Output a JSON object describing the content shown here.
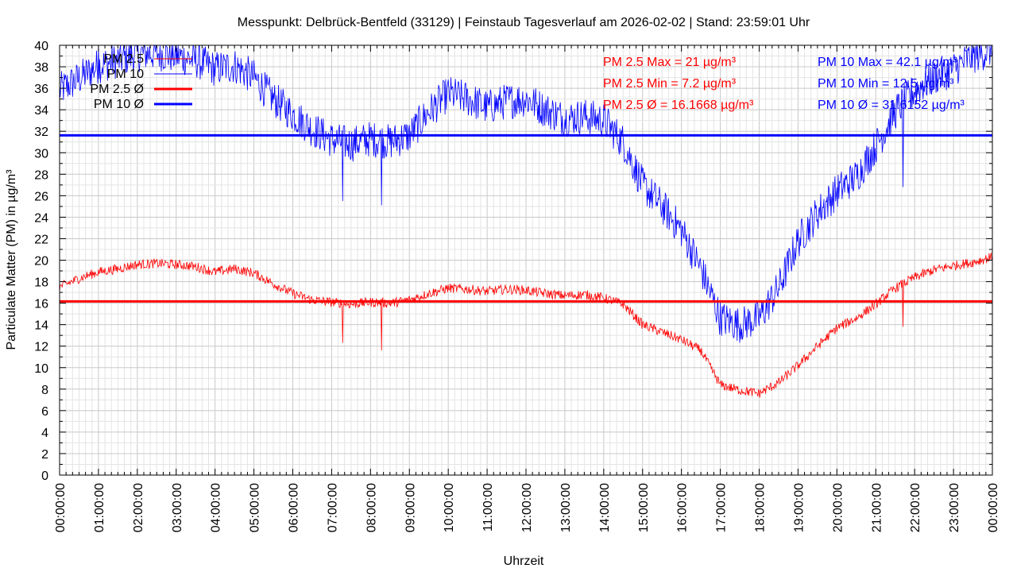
{
  "chart_data": {
    "type": "line",
    "title": "Messpunkt: Delbrück-Bentfeld (33129) | Feinstaub Tagesverlauf am 2026-02-02 | Stand: 23:59:01 Uhr",
    "xlabel": "Uhrzeit",
    "ylabel": "Particulate Matter (PM) in µg/m³",
    "ylim": [
      0,
      40
    ],
    "yticks": [
      0,
      2,
      4,
      6,
      8,
      10,
      12,
      14,
      16,
      18,
      20,
      22,
      24,
      26,
      28,
      30,
      32,
      34,
      36,
      38,
      40
    ],
    "xlim": [
      0,
      24
    ],
    "xticks": [
      "00:00:00",
      "01:00:00",
      "02:00:00",
      "03:00:00",
      "04:00:00",
      "05:00:00",
      "06:00:00",
      "07:00:00",
      "08:00:00",
      "09:00:00",
      "10:00:00",
      "11:00:00",
      "12:00:00",
      "13:00:00",
      "14:00:00",
      "15:00:00",
      "16:00:00",
      "17:00:00",
      "18:00:00",
      "19:00:00",
      "20:00:00",
      "21:00:00",
      "22:00:00",
      "23:00:00",
      "00:00:00"
    ],
    "grid": true,
    "legend_position": "top-left",
    "series": [
      {
        "name": "PM 2.5",
        "color": "#ff0000",
        "x": [
          0,
          0.5,
          1,
          1.5,
          2,
          2.5,
          3,
          3.5,
          4,
          4.5,
          5,
          5.5,
          6,
          6.5,
          7,
          7.5,
          8,
          8.5,
          9,
          9.5,
          10,
          10.5,
          11,
          11.5,
          12,
          12.5,
          13,
          13.5,
          14,
          14.5,
          15,
          15.5,
          16,
          16.5,
          17,
          17.5,
          18,
          18.5,
          19,
          19.5,
          20,
          20.5,
          21,
          21.5,
          22,
          22.5,
          23,
          23.5,
          24
        ],
        "values": [
          17.5,
          18.3,
          18.9,
          19.2,
          19.6,
          19.7,
          19.6,
          19.4,
          18.9,
          19.2,
          18.8,
          17.8,
          16.9,
          16.3,
          16.1,
          15.9,
          16.1,
          16.0,
          16.3,
          16.9,
          17.4,
          17.3,
          17.1,
          17.3,
          17.2,
          16.9,
          16.7,
          16.8,
          16.5,
          15.9,
          14.0,
          13.3,
          12.6,
          11.6,
          8.4,
          7.9,
          7.6,
          8.6,
          10.2,
          12.0,
          13.7,
          14.6,
          15.9,
          17.4,
          18.4,
          19.1,
          19.5,
          19.8,
          20.3
        ]
      },
      {
        "name": "PM 10",
        "color": "#0000ff",
        "x": [
          0,
          0.5,
          1,
          1.5,
          2,
          2.5,
          3,
          3.5,
          4,
          4.5,
          5,
          5.5,
          6,
          6.5,
          7,
          7.5,
          8,
          8.5,
          9,
          9.5,
          10,
          10.5,
          11,
          11.5,
          12,
          12.5,
          13,
          13.5,
          14,
          14.5,
          15,
          15.5,
          16,
          16.5,
          17,
          17.5,
          18,
          18.5,
          19,
          19.5,
          20,
          20.5,
          21,
          21.5,
          22,
          22.5,
          23,
          23.5,
          24
        ],
        "values": [
          35.8,
          36.9,
          38.1,
          38.6,
          39.2,
          39.3,
          39.0,
          38.6,
          37.8,
          38.1,
          37.0,
          35.0,
          33.6,
          32.2,
          31.2,
          30.8,
          31.3,
          31.0,
          31.6,
          33.8,
          35.5,
          35.0,
          34.2,
          34.8,
          35.0,
          34.0,
          33.2,
          33.4,
          33.0,
          31.0,
          27.0,
          25.0,
          22.8,
          19.2,
          14.6,
          14.0,
          14.6,
          17.4,
          21.8,
          24.4,
          26.4,
          27.8,
          30.6,
          33.8,
          35.8,
          37.0,
          37.8,
          39.0,
          39.6
        ]
      },
      {
        "name": "PM 2.5 Ø",
        "color": "#ff0000",
        "constant": 16.1668
      },
      {
        "name": "PM 10 Ø",
        "color": "#0000ff",
        "constant": 31.6152
      }
    ],
    "spikes": [
      {
        "series": "PM 2.5",
        "x": 7.28,
        "value": 12.3
      },
      {
        "series": "PM 2.5",
        "x": 8.28,
        "value": 11.6
      },
      {
        "series": "PM 2.5",
        "x": 21.7,
        "value": 13.8
      },
      {
        "series": "PM 10",
        "x": 7.28,
        "value": 25.5
      },
      {
        "series": "PM 10",
        "x": 8.28,
        "value": 25.1
      },
      {
        "series": "PM 10",
        "x": 21.7,
        "value": 26.8
      },
      {
        "series": "PM 10",
        "x": 1.0,
        "value": 40
      }
    ],
    "annotations": {
      "pm25": [
        "PM 2.5 Max = 21 µg/m³",
        "PM 2.5 Min = 7.2 µg/m³",
        "PM 2.5 Ø = 16.1668 µg/m³"
      ],
      "pm10": [
        "PM 10 Max = 42.1 µg/m³",
        "PM 10 Min = 12.5 µg/m³",
        "PM 10 Ø = 31.6152 µg/m³"
      ]
    }
  }
}
